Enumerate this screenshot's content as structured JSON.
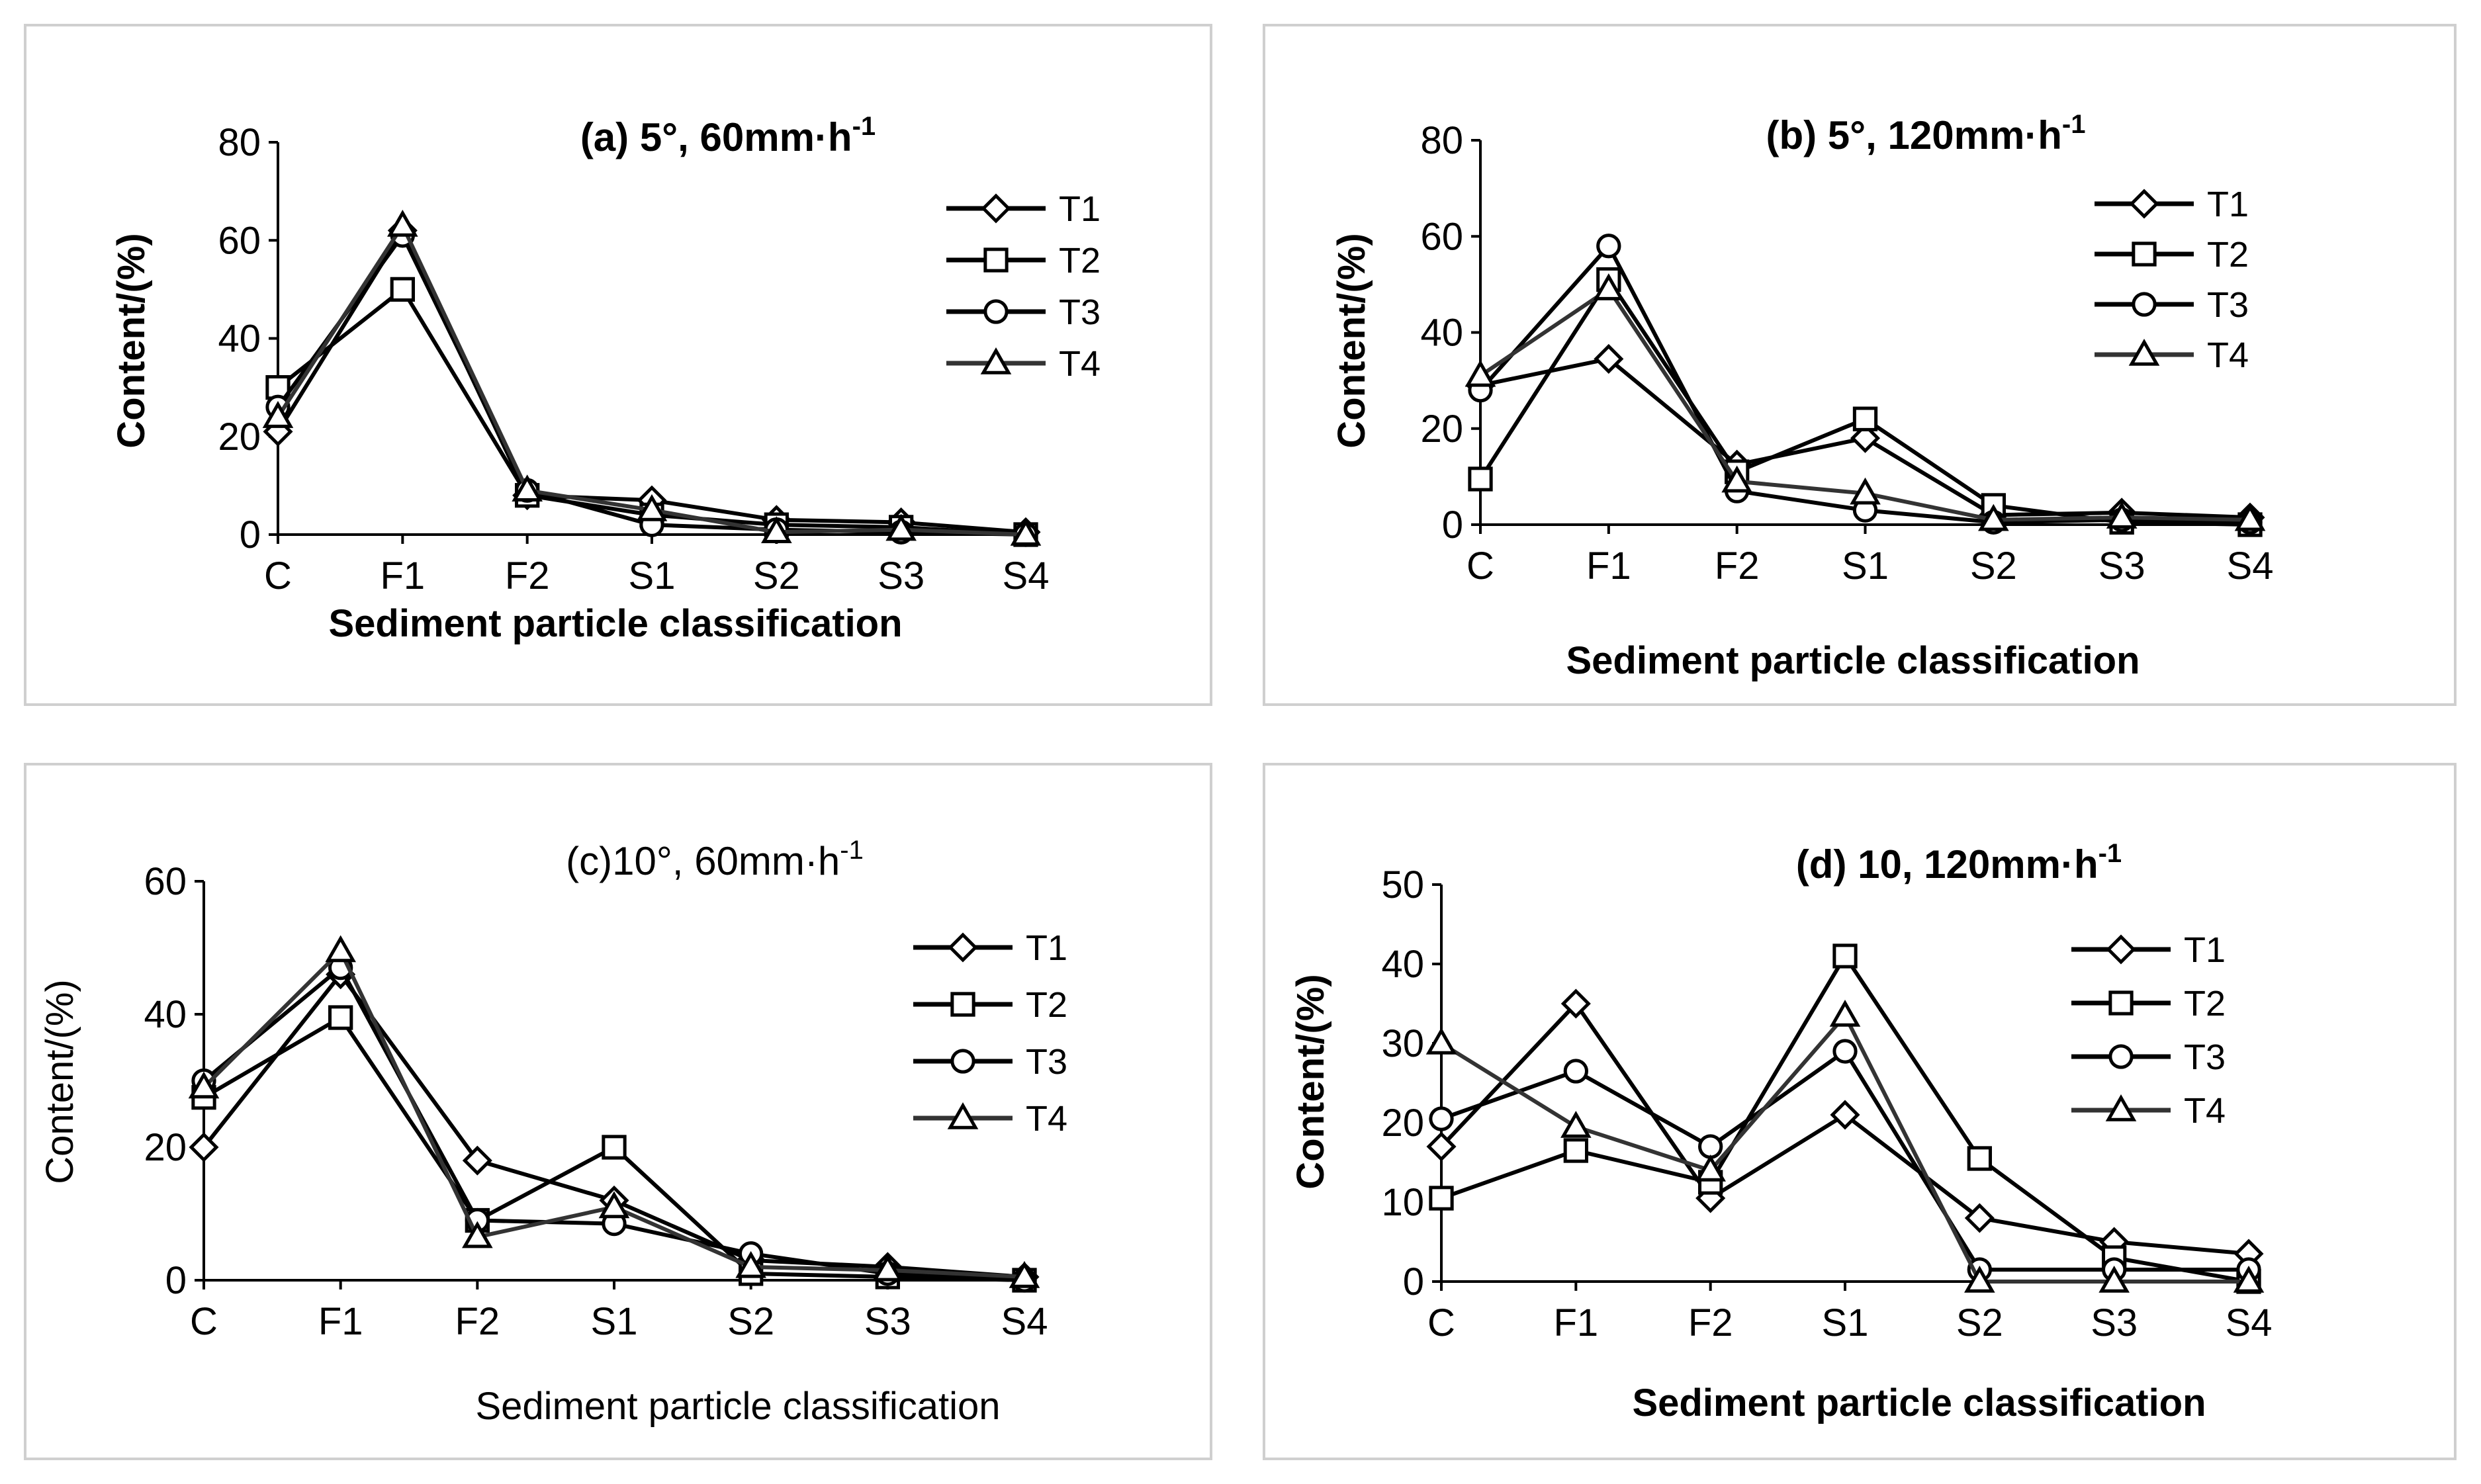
{
  "chart_data": [
    {
      "type": "line",
      "title": "(a) 5°, 60mm·h",
      "title_sup": "-1",
      "title_bold": true,
      "xlabel": "Sediment particle classification",
      "ylabel": "Content/(%)",
      "categories": [
        "C",
        "F1",
        "F2",
        "S1",
        "S2",
        "S3",
        "S4"
      ],
      "ylim": [
        0,
        80
      ],
      "yticks": [
        0,
        20,
        40,
        60,
        80
      ],
      "series": [
        {
          "name": "T1",
          "marker": "diamond",
          "color": "#000000",
          "values": [
            21,
            62,
            8,
            7,
            3,
            2.5,
            0.5
          ]
        },
        {
          "name": "T2",
          "marker": "square",
          "color": "#000000",
          "values": [
            30,
            50,
            8,
            4,
            2,
            1.5,
            0
          ]
        },
        {
          "name": "T3",
          "marker": "circle",
          "color": "#000000",
          "values": [
            26,
            61,
            9,
            2,
            1,
            0.5,
            0
          ]
        },
        {
          "name": "T4",
          "marker": "triangle",
          "color": "#333333",
          "values": [
            24,
            63,
            9,
            5,
            0.5,
            1,
            0
          ]
        }
      ]
    },
    {
      "type": "line",
      "title": "(b) 5°, 120mm·h",
      "title_sup": "-1",
      "title_bold": true,
      "xlabel": "Sediment particle classification",
      "ylabel": "Content/(%)",
      "categories": [
        "C",
        "F1",
        "F2",
        "S1",
        "S2",
        "S3",
        "S4"
      ],
      "ylim": [
        0,
        80
      ],
      "yticks": [
        0,
        20,
        40,
        60,
        80
      ],
      "series": [
        {
          "name": "T1",
          "marker": "diamond",
          "color": "#000000",
          "values": [
            29,
            34.5,
            12.5,
            18,
            2,
            2.5,
            1.5
          ]
        },
        {
          "name": "T2",
          "marker": "square",
          "color": "#000000",
          "values": [
            9.5,
            51,
            11,
            22,
            4,
            0.5,
            0
          ]
        },
        {
          "name": "T3",
          "marker": "circle",
          "color": "#000000",
          "values": [
            28,
            58,
            7,
            3,
            0.5,
            1,
            0.5
          ]
        },
        {
          "name": "T4",
          "marker": "triangle",
          "color": "#333333",
          "values": [
            31,
            49,
            9,
            6.5,
            1,
            1.5,
            1
          ]
        }
      ]
    },
    {
      "type": "line",
      "title": "(c)10°, 60mm·h",
      "title_sup": "-1",
      "title_bold": false,
      "xlabel": "Sediment particle classification",
      "ylabel": "Content/(%)",
      "categories": [
        "C",
        "F1",
        "F2",
        "S1",
        "S2",
        "S3",
        "S4"
      ],
      "ylim": [
        0,
        60
      ],
      "yticks": [
        0,
        20,
        40,
        60
      ],
      "series": [
        {
          "name": "T1",
          "marker": "diamond",
          "color": "#000000",
          "values": [
            20,
            46,
            18,
            12,
            3,
            2,
            0.5
          ]
        },
        {
          "name": "T2",
          "marker": "square",
          "color": "#000000",
          "values": [
            27.5,
            39.5,
            9,
            20,
            1,
            0.5,
            0
          ]
        },
        {
          "name": "T3",
          "marker": "circle",
          "color": "#000000",
          "values": [
            30,
            47,
            9,
            8.5,
            4,
            1,
            0
          ]
        },
        {
          "name": "T4",
          "marker": "triangle",
          "color": "#333333",
          "values": [
            29,
            49.5,
            6.5,
            11,
            2,
            1.5,
            0.5
          ]
        }
      ]
    },
    {
      "type": "line",
      "title": "(d) 10, 120mm·h",
      "title_sup": "-1",
      "title_bold": true,
      "xlabel": "Sediment particle classification",
      "ylabel": "Content/(%)",
      "categories": [
        "C",
        "F1",
        "F2",
        "S1",
        "S2",
        "S3",
        "S4"
      ],
      "ylim": [
        0,
        50
      ],
      "yticks": [
        0,
        10,
        20,
        30,
        40,
        50
      ],
      "series": [
        {
          "name": "T1",
          "marker": "diamond",
          "color": "#000000",
          "values": [
            17,
            35,
            10.5,
            21,
            8,
            5,
            3.5
          ]
        },
        {
          "name": "T2",
          "marker": "square",
          "color": "#000000",
          "values": [
            10.5,
            16.5,
            12.5,
            41,
            15.5,
            3,
            0
          ]
        },
        {
          "name": "T3",
          "marker": "circle",
          "color": "#000000",
          "values": [
            20.5,
            26.5,
            17,
            29,
            1.5,
            1.5,
            1.5
          ]
        },
        {
          "name": "T4",
          "marker": "triangle",
          "color": "#333333",
          "values": [
            30,
            19.5,
            14,
            33.5,
            0,
            0,
            0
          ]
        }
      ]
    }
  ]
}
